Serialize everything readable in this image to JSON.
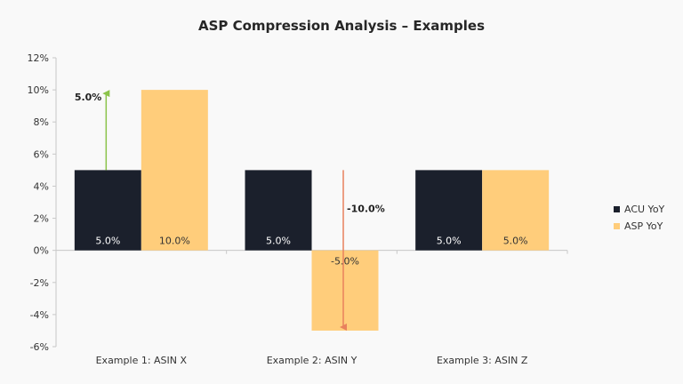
{
  "colors": {
    "acu": "#1b202c",
    "asp": "#ffcd7b",
    "up_arrow": "#8bc34a",
    "down_arrow": "#e8815d",
    "axis": "#c8c8c8"
  },
  "chart_data": {
    "type": "bar",
    "title": "ASP Compression Analysis – Examples",
    "xlabel": "",
    "ylabel": "",
    "categories": [
      "Example 1: ASIN X",
      "Example 2: ASIN Y",
      "Example 3: ASIN Z"
    ],
    "ylim": [
      -6,
      12
    ],
    "yticks": [
      -6,
      -4,
      -2,
      0,
      2,
      4,
      6,
      8,
      10,
      12
    ],
    "ytick_labels": [
      "-6%",
      "-4%",
      "-2%",
      "0%",
      "2%",
      "4%",
      "6%",
      "8%",
      "10%",
      "12%"
    ],
    "series": [
      {
        "name": "ACU YoY",
        "values": [
          5,
          5,
          5
        ],
        "labels": [
          "5.0%",
          "5.0%",
          "5.0%"
        ]
      },
      {
        "name": "ASP YoY",
        "values": [
          10,
          -5,
          5
        ],
        "labels": [
          "10.0%",
          "-5.0%",
          "5.0%"
        ]
      }
    ],
    "annotations": [
      {
        "category_index": 0,
        "from": 5,
        "to": 10,
        "label": "5.0%",
        "direction": "up"
      },
      {
        "category_index": 1,
        "from": 5,
        "to": -5,
        "label": "-10.0%",
        "direction": "down"
      }
    ],
    "legend_position": "right",
    "grid": false
  }
}
